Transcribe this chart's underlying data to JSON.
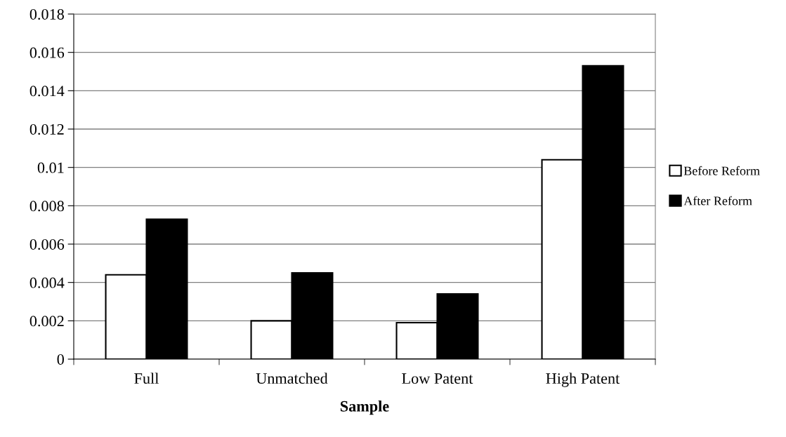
{
  "chart_data": {
    "type": "bar",
    "xlabel": "Sample",
    "categories": [
      "Full",
      "Unmatched",
      "Low Patent",
      "High Patent"
    ],
    "series": [
      {
        "name": "Before Reform",
        "color": "#ffffff",
        "values": [
          0.0044,
          0.002,
          0.0019,
          0.0104
        ]
      },
      {
        "name": "After Reform",
        "color": "#000000",
        "values": [
          0.0073,
          0.0045,
          0.0034,
          0.0153
        ]
      }
    ],
    "ylim": [
      0,
      0.018
    ],
    "yticks": [
      {
        "value": 0,
        "label": "0"
      },
      {
        "value": 0.002,
        "label": "0.002"
      },
      {
        "value": 0.004,
        "label": "0.004"
      },
      {
        "value": 0.006,
        "label": "0.006"
      },
      {
        "value": 0.008,
        "label": "0.008"
      },
      {
        "value": 0.01,
        "label": "0.01"
      },
      {
        "value": 0.012,
        "label": "0.012"
      },
      {
        "value": 0.014,
        "label": "0.014"
      },
      {
        "value": 0.016,
        "label": "0.016"
      },
      {
        "value": 0.018,
        "label": "0.018"
      }
    ],
    "grid": "y",
    "legend": "right"
  }
}
